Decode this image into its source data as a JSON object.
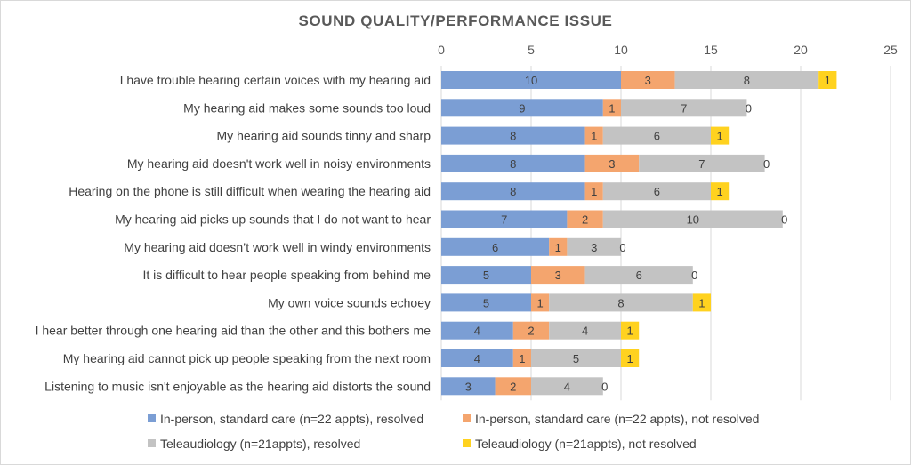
{
  "chart_data": {
    "type": "bar",
    "orientation": "horizontal",
    "stacked": true,
    "title": "SOUND QUALITY/PERFORMANCE ISSUE",
    "xlim": [
      0,
      25
    ],
    "xticks": [
      0,
      5,
      10,
      15,
      20,
      25
    ],
    "x_axis_position": "top",
    "grid": true,
    "legend_position": "bottom",
    "categories": [
      "I have trouble hearing certain voices with my hearing aid",
      "My hearing aid makes some sounds too loud",
      "My hearing aid sounds tinny and sharp",
      "My hearing aid doesn't work well in noisy environments",
      "Hearing on the phone is still difficult when wearing the hearing aid",
      "My hearing aid picks up sounds that I do not want to hear",
      "My hearing aid doesn’t work well in windy environments",
      "It is difficult to hear people speaking from behind me",
      "My own voice sounds echoey",
      "I hear better through one hearing aid than the other and this bothers me",
      "My hearing aid cannot pick up people speaking from the next room",
      "Listening to music isn't enjoyable as the hearing aid distorts the sound"
    ],
    "series": [
      {
        "name": "In-person, standard care (n=22 appts), resolved",
        "color": "#7b9ed4",
        "values": [
          10,
          9,
          8,
          8,
          8,
          7,
          6,
          5,
          5,
          4,
          4,
          3
        ]
      },
      {
        "name": "In-person, standard care (n=22 appts), not resolved",
        "color": "#f4a56e",
        "values": [
          3,
          1,
          1,
          3,
          1,
          2,
          1,
          3,
          1,
          2,
          1,
          2
        ]
      },
      {
        "name": "Teleaudiology (n=21appts), resolved",
        "color": "#c3c3c3",
        "values": [
          8,
          7,
          6,
          7,
          6,
          10,
          3,
          6,
          8,
          4,
          5,
          4
        ]
      },
      {
        "name": "Teleaudiology (n=21appts), not resolved",
        "color": "#ffd21f",
        "values": [
          1,
          0,
          1,
          0,
          1,
          0,
          0,
          0,
          1,
          1,
          1,
          0
        ]
      }
    ]
  }
}
